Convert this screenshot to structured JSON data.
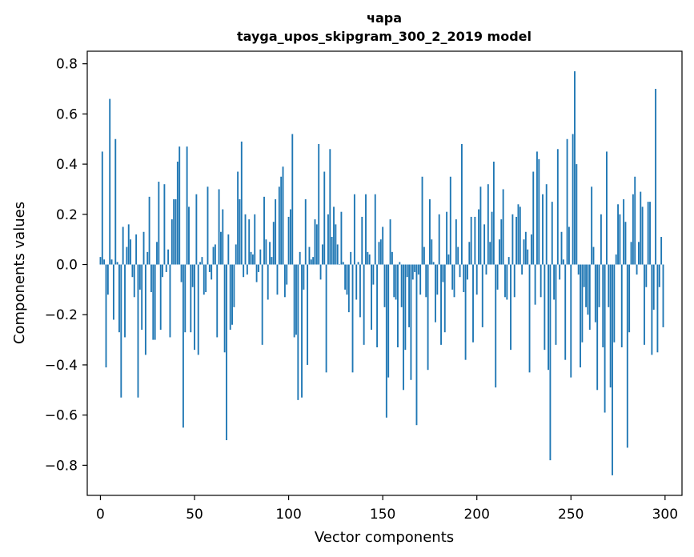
{
  "chart_data": {
    "type": "bar",
    "title": "чара",
    "subtitle": "tayga_upos_skipgram_300_2_2019 model",
    "xlabel": "Vector components",
    "ylabel": "Components values",
    "xlim": [
      -7,
      309
    ],
    "ylim": [
      -0.92,
      0.85
    ],
    "xticks": [
      0,
      50,
      100,
      150,
      200,
      250,
      300
    ],
    "xtick_labels": [
      "0",
      "50",
      "100",
      "150",
      "200",
      "250",
      "300"
    ],
    "yticks": [
      0.8,
      0.6,
      0.4,
      0.2,
      0.0,
      -0.2,
      -0.4,
      -0.6,
      -0.8
    ],
    "ytick_labels": [
      "0.8",
      "0.6",
      "0.4",
      "0.2",
      "0.0",
      "−0.2",
      "−0.4",
      "−0.6",
      "−0.8"
    ],
    "bar_color": "#1f77b4",
    "grid": false,
    "values": [
      0.03,
      0.45,
      0.02,
      -0.41,
      -0.12,
      0.66,
      0.02,
      -0.22,
      0.5,
      0.01,
      -0.27,
      -0.53,
      0.15,
      -0.29,
      0.07,
      0.16,
      0.1,
      -0.05,
      -0.13,
      0.12,
      -0.53,
      -0.1,
      -0.26,
      0.13,
      -0.36,
      0.05,
      0.27,
      -0.11,
      -0.3,
      -0.3,
      0.09,
      0.33,
      -0.26,
      -0.05,
      0.32,
      -0.03,
      0.06,
      -0.29,
      0.18,
      0.26,
      0.26,
      0.41,
      0.47,
      -0.07,
      -0.65,
      -0.27,
      0.47,
      0.23,
      -0.27,
      -0.09,
      -0.34,
      0.28,
      -0.36,
      0.01,
      0.03,
      -0.12,
      -0.11,
      0.31,
      -0.03,
      -0.06,
      0.07,
      0.08,
      -0.29,
      0.3,
      0.13,
      0.22,
      -0.35,
      -0.7,
      0.12,
      -0.26,
      -0.24,
      -0.17,
      0.08,
      0.37,
      0.26,
      0.49,
      -0.05,
      0.2,
      -0.04,
      0.18,
      0.05,
      0.04,
      0.2,
      -0.07,
      -0.03,
      0.06,
      -0.32,
      0.27,
      0.1,
      -0.14,
      0.09,
      0.03,
      0.17,
      0.26,
      -0.12,
      0.31,
      0.35,
      0.39,
      -0.13,
      -0.08,
      0.19,
      0.22,
      0.52,
      -0.29,
      -0.28,
      -0.54,
      0.05,
      -0.53,
      -0.1,
      0.26,
      -0.4,
      0.07,
      0.02,
      0.03,
      0.18,
      0.16,
      0.48,
      -0.06,
      0.08,
      0.37,
      -0.43,
      0.2,
      0.46,
      0.11,
      0.23,
      0.16,
      0.08,
      0.0,
      0.21,
      0.01,
      -0.1,
      -0.12,
      -0.19,
      0.05,
      -0.43,
      0.28,
      -0.14,
      0.01,
      -0.21,
      0.19,
      -0.32,
      0.28,
      0.05,
      0.04,
      -0.26,
      -0.08,
      0.28,
      -0.33,
      0.09,
      0.1,
      0.15,
      -0.17,
      -0.61,
      -0.45,
      0.18,
      0.05,
      -0.13,
      -0.14,
      -0.33,
      0.01,
      -0.17,
      -0.5,
      -0.34,
      -0.05,
      -0.25,
      -0.46,
      -0.06,
      -0.03,
      -0.64,
      -0.04,
      -0.12,
      0.35,
      0.07,
      -0.13,
      -0.42,
      0.26,
      0.1,
      0.01,
      -0.23,
      -0.12,
      0.2,
      -0.32,
      -0.07,
      -0.27,
      0.21,
      0.04,
      0.35,
      -0.1,
      -0.13,
      0.18,
      0.07,
      -0.05,
      0.48,
      -0.11,
      -0.38,
      -0.06,
      0.09,
      0.19,
      -0.31,
      0.19,
      -0.12,
      0.22,
      0.31,
      -0.25,
      0.16,
      -0.04,
      0.32,
      0.09,
      0.21,
      0.41,
      -0.49,
      -0.1,
      0.1,
      0.18,
      0.3,
      -0.13,
      -0.14,
      0.03,
      -0.34,
      0.2,
      -0.13,
      0.19,
      0.24,
      0.23,
      -0.04,
      0.1,
      0.13,
      0.06,
      -0.43,
      0.12,
      0.37,
      -0.16,
      0.45,
      0.42,
      -0.13,
      0.28,
      -0.34,
      0.32,
      -0.42,
      -0.78,
      0.25,
      -0.14,
      -0.32,
      0.46,
      -0.06,
      0.13,
      0.02,
      -0.38,
      0.5,
      0.15,
      -0.45,
      0.52,
      0.77,
      0.4,
      -0.04,
      -0.41,
      -0.31,
      -0.09,
      -0.17,
      -0.2,
      -0.26,
      0.31,
      0.07,
      -0.23,
      -0.5,
      -0.17,
      0.2,
      -0.33,
      -0.59,
      0.45,
      -0.17,
      -0.49,
      -0.84,
      -0.31,
      0.04,
      0.24,
      0.2,
      -0.33,
      0.26,
      0.17,
      -0.73,
      -0.27,
      0.09,
      0.28,
      0.35,
      -0.04,
      0.09,
      0.29,
      0.23,
      -0.32,
      -0.09,
      0.25,
      0.25,
      -0.36,
      -0.18,
      0.7,
      -0.35,
      -0.09,
      0.11,
      -0.25
    ]
  }
}
